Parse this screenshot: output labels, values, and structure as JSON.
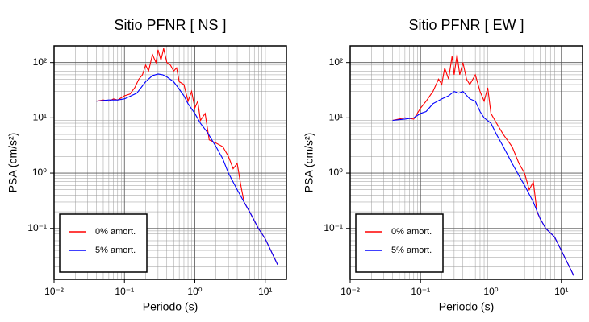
{
  "chart_data": [
    {
      "type": "line",
      "title": "Sitio PFNR [ NS ]",
      "x_label": "Periodo (s)",
      "y_label": "PSA (cm/s²)",
      "log_x": true,
      "log_y": true,
      "grid": true,
      "legend": "lower left",
      "xlim": [
        0.01,
        20
      ],
      "ylim": [
        0.012,
        200
      ],
      "xticks": [
        {
          "value": 0.01,
          "label": "10⁻²"
        },
        {
          "value": 0.1,
          "label": "10⁻¹"
        },
        {
          "value": 1,
          "label": "10⁰"
        },
        {
          "value": 10,
          "label": "10¹"
        }
      ],
      "yticks": [
        {
          "value": 0.1,
          "label": "10⁻¹"
        },
        {
          "value": 1,
          "label": "10⁰"
        },
        {
          "value": 10,
          "label": "10¹"
        },
        {
          "value": 100,
          "label": "10²"
        }
      ],
      "series": [
        {
          "name": "0% amort.",
          "color": "#ff0000",
          "x": [
            0.04,
            0.05,
            0.06,
            0.07,
            0.08,
            0.1,
            0.12,
            0.14,
            0.16,
            0.18,
            0.2,
            0.22,
            0.25,
            0.28,
            0.3,
            0.33,
            0.36,
            0.4,
            0.45,
            0.5,
            0.55,
            0.6,
            0.7,
            0.8,
            0.9,
            1.0,
            1.1,
            1.2,
            1.4,
            1.6,
            2,
            2.5,
            3,
            3.5,
            4,
            4.5,
            5,
            6,
            8,
            10,
            15
          ],
          "values": [
            20,
            21,
            20,
            22,
            21,
            25,
            27,
            35,
            50,
            60,
            90,
            70,
            140,
            100,
            170,
            110,
            180,
            100,
            90,
            70,
            80,
            45,
            40,
            20,
            30,
            15,
            20,
            9,
            12,
            4,
            3.5,
            3,
            2,
            1.2,
            1.5,
            0.6,
            0.3,
            0.2,
            0.1,
            0.065,
            0.022
          ]
        },
        {
          "name": "5% amort.",
          "color": "#0000ff",
          "x": [
            0.04,
            0.06,
            0.08,
            0.1,
            0.15,
            0.2,
            0.25,
            0.3,
            0.35,
            0.4,
            0.5,
            0.6,
            0.7,
            0.8,
            1.0,
            1.2,
            1.5,
            2,
            2.5,
            3,
            4,
            5,
            6,
            8,
            10,
            15
          ],
          "values": [
            20,
            21,
            21,
            22,
            28,
            45,
            58,
            62,
            60,
            55,
            45,
            33,
            25,
            18,
            12,
            8,
            5.5,
            3,
            1.8,
            1.0,
            0.5,
            0.3,
            0.2,
            0.1,
            0.065,
            0.022
          ]
        }
      ]
    },
    {
      "type": "line",
      "title": "Sitio PFNR [ EW ]",
      "x_label": "Periodo (s)",
      "y_label": "PSA (cm/s²)",
      "log_x": true,
      "log_y": true,
      "grid": true,
      "legend": "lower left",
      "xlim": [
        0.01,
        20
      ],
      "ylim": [
        0.012,
        200
      ],
      "xticks": [
        {
          "value": 0.01,
          "label": "10⁻²"
        },
        {
          "value": 0.1,
          "label": "10⁻¹"
        },
        {
          "value": 1,
          "label": "10⁰"
        },
        {
          "value": 10,
          "label": "10¹"
        }
      ],
      "yticks": [
        {
          "value": 0.1,
          "label": "10⁻¹"
        },
        {
          "value": 1,
          "label": "10⁰"
        },
        {
          "value": 10,
          "label": "10¹"
        },
        {
          "value": 100,
          "label": "10²"
        }
      ],
      "series": [
        {
          "name": "0% amort.",
          "color": "#ff0000",
          "x": [
            0.04,
            0.06,
            0.08,
            0.1,
            0.12,
            0.15,
            0.18,
            0.2,
            0.22,
            0.25,
            0.28,
            0.3,
            0.33,
            0.36,
            0.4,
            0.45,
            0.5,
            0.6,
            0.7,
            0.8,
            0.9,
            1.0,
            1.2,
            1.5,
            2,
            2.5,
            3,
            3.5,
            4,
            4.5,
            5,
            6,
            8,
            10,
            15
          ],
          "values": [
            9,
            10,
            9.5,
            15,
            20,
            30,
            50,
            40,
            80,
            50,
            130,
            60,
            140,
            60,
            100,
            50,
            40,
            60,
            30,
            20,
            35,
            12,
            8,
            5,
            3,
            1.5,
            1,
            0.5,
            0.7,
            0.2,
            0.15,
            0.1,
            0.07,
            0.04,
            0.014
          ]
        },
        {
          "name": "5% amort.",
          "color": "#0000ff",
          "x": [
            0.04,
            0.06,
            0.08,
            0.1,
            0.12,
            0.15,
            0.2,
            0.25,
            0.3,
            0.35,
            0.4,
            0.5,
            0.6,
            0.7,
            0.8,
            1.0,
            1.2,
            1.5,
            2,
            2.5,
            3,
            4,
            5,
            6,
            8,
            10,
            15
          ],
          "values": [
            9,
            9.5,
            10,
            12,
            13,
            18,
            22,
            25,
            30,
            28,
            30,
            22,
            20,
            13,
            10,
            8,
            5,
            3,
            1.5,
            0.9,
            0.6,
            0.3,
            0.15,
            0.1,
            0.07,
            0.04,
            0.014
          ]
        }
      ]
    }
  ]
}
